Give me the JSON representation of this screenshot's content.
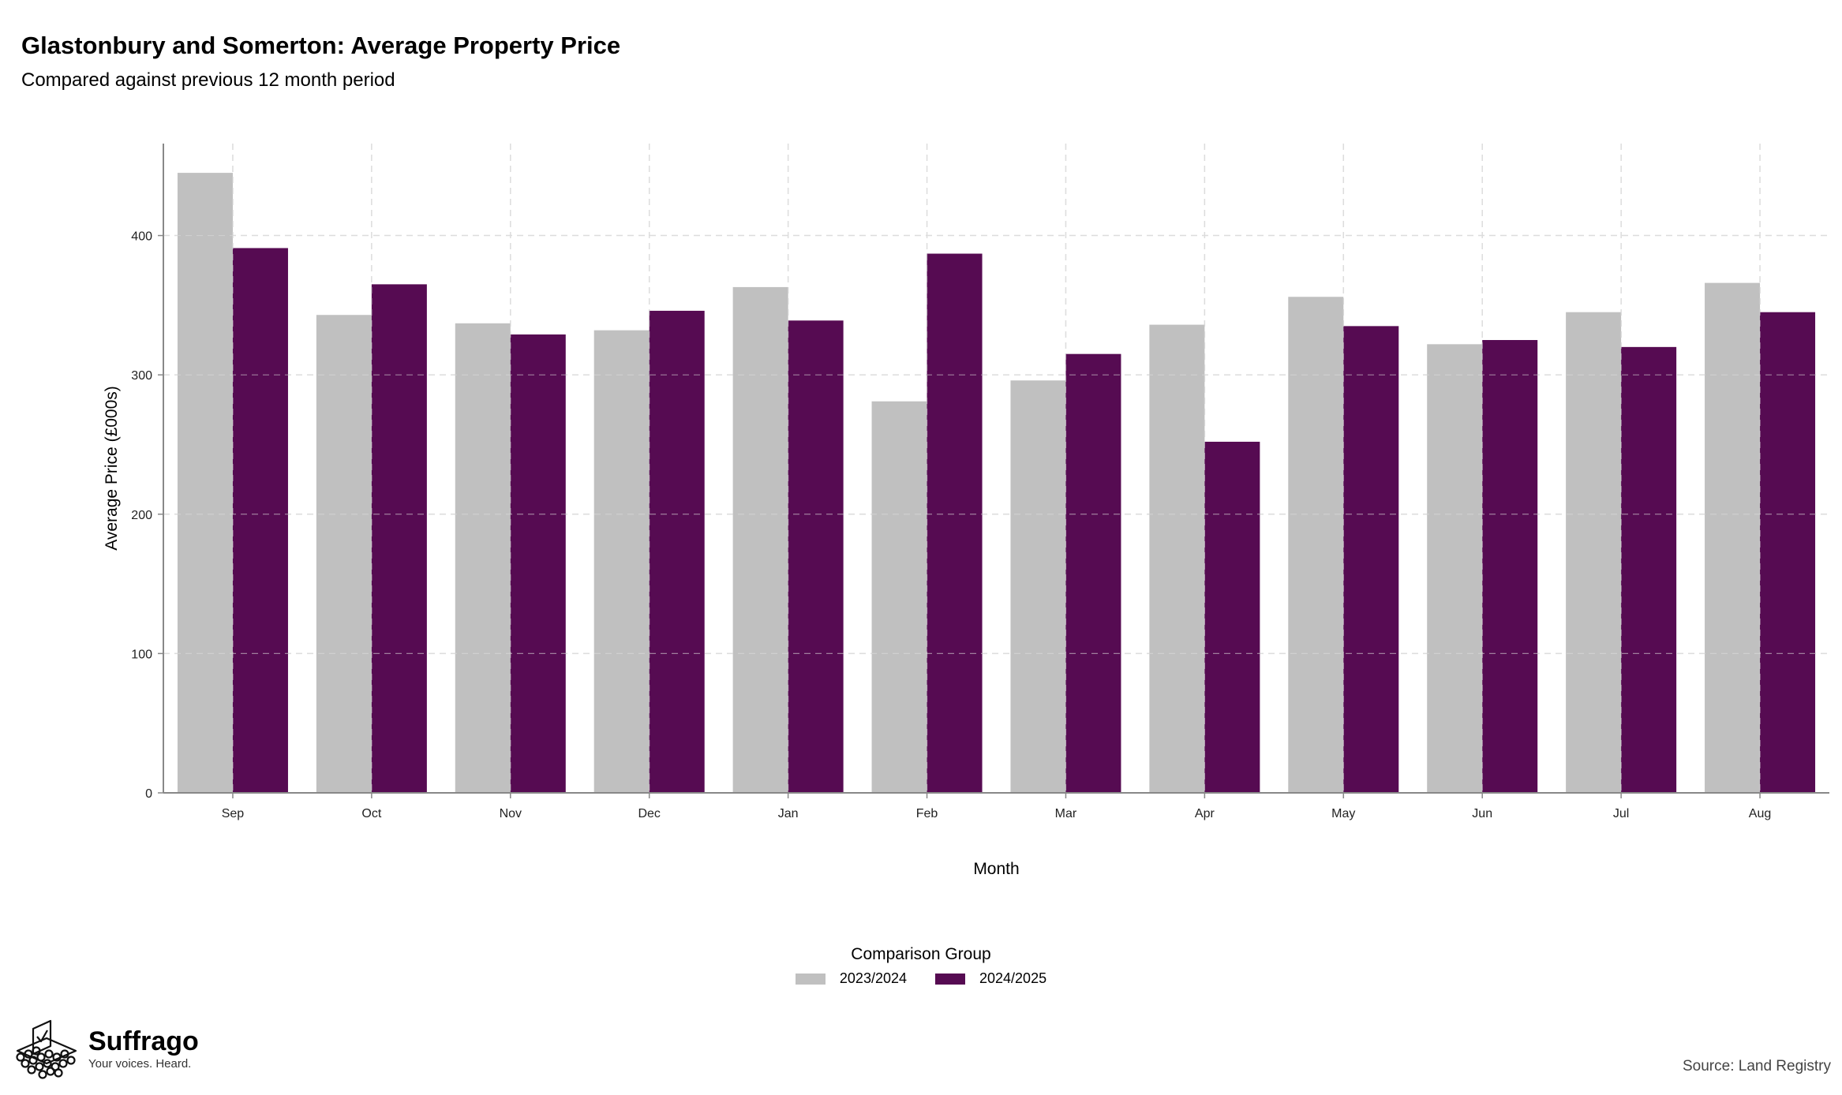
{
  "title": "Glastonbury and Somerton: Average Property Price",
  "subtitle": "Compared against previous 12 month period",
  "source": "Source: Land Registry",
  "logo": {
    "name": "Suffrago",
    "tagline": "Your voices. Heard."
  },
  "colors": {
    "series_2023_2024": "#c0c0c0",
    "series_2024_2025": "#560b52",
    "grid": "#dddddd",
    "axis": "#888888"
  },
  "legend": {
    "title": "Comparison Group",
    "items": [
      "2023/2024",
      "2024/2025"
    ]
  },
  "chart_data": {
    "type": "bar",
    "xlabel": "Month",
    "ylabel": "Average Price (£000s)",
    "categories": [
      "Sep",
      "Oct",
      "Nov",
      "Dec",
      "Jan",
      "Feb",
      "Mar",
      "Apr",
      "May",
      "Jun",
      "Jul",
      "Aug"
    ],
    "ylim": [
      0,
      466
    ],
    "yticks": [
      0,
      100,
      200,
      300,
      400
    ],
    "grid": true,
    "legend_position": "bottom",
    "series": [
      {
        "name": "2023/2024",
        "values": [
          445,
          343,
          337,
          332,
          363,
          281,
          296,
          336,
          356,
          322,
          345,
          366
        ]
      },
      {
        "name": "2024/2025",
        "values": [
          391,
          365,
          329,
          346,
          339,
          387,
          315,
          252,
          335,
          325,
          320,
          345
        ]
      }
    ]
  }
}
